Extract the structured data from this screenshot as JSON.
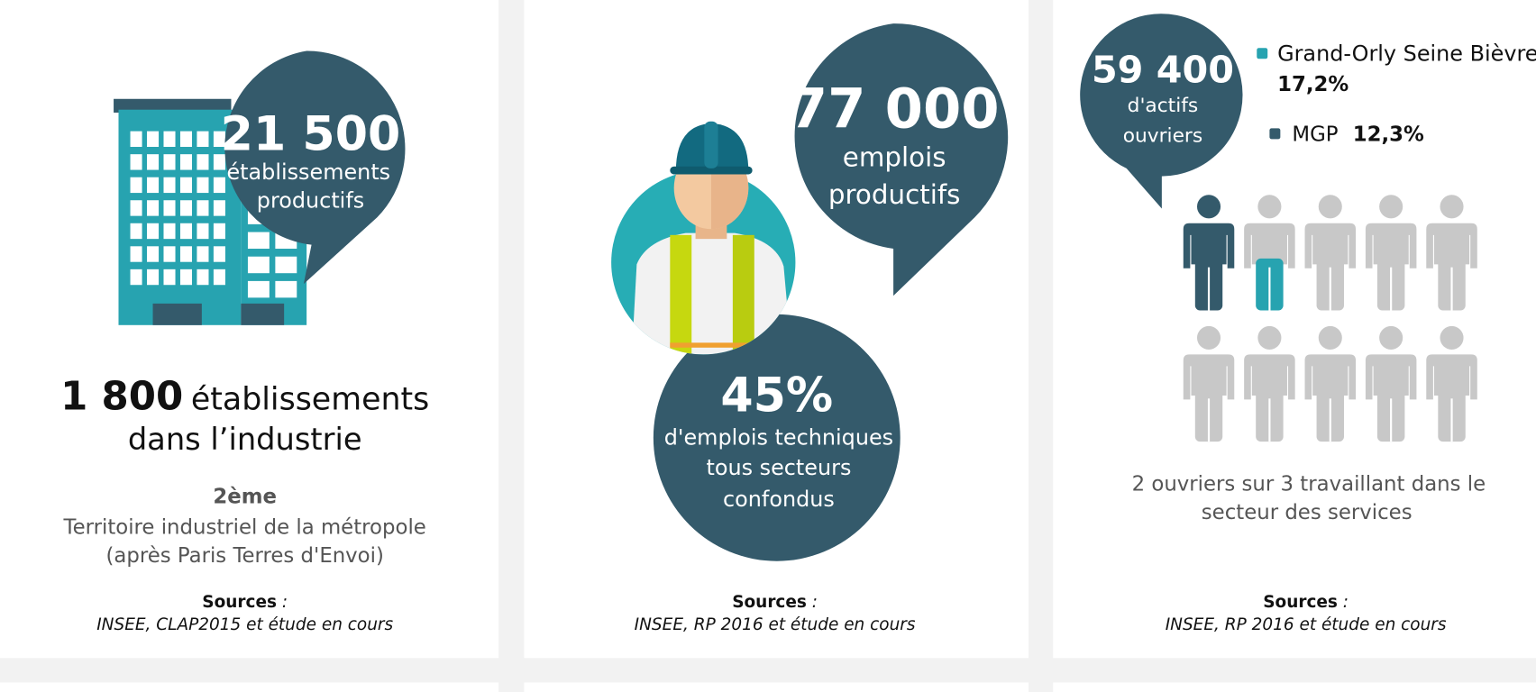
{
  "cards": [
    {
      "bubble": {
        "number": "21 500",
        "line1": "établissements",
        "line2": "productifs"
      },
      "headline": {
        "number": "1 800",
        "rest": "établissements",
        "line2": "dans l’industrie"
      },
      "rank": "2ème",
      "rank_line1": "Territoire industriel de la métropole",
      "rank_line2": "(après Paris Terres d'Envoi)",
      "sources_label": "Sources",
      "sources_sep": " :",
      "sources": "INSEE, CLAP2015 et étude en cours"
    },
    {
      "bubble": {
        "number": "77 000",
        "line1": "emplois",
        "line2": "productifs"
      },
      "bubble2": {
        "number": "45%",
        "line1": "d'emplois techniques",
        "line2": "tous secteurs",
        "line3": "confondus"
      },
      "sources_label": "Sources",
      "sources_sep": " :",
      "sources": "INSEE, RP 2016 et étude en cours"
    },
    {
      "bubble": {
        "number": "59 400",
        "line1": "d'actifs",
        "line2": "ouvriers"
      },
      "legend": [
        {
          "name": "Grand-Orly Seine Bièvre",
          "value": "17,2%"
        },
        {
          "name": "MGP",
          "value": "12,3%"
        }
      ],
      "caption_line1": "2 ouvriers sur 3 travaillant dans le",
      "caption_line2": "secteur des services",
      "sources_label": "Sources",
      "sources_sep": " :",
      "sources": "INSEE, RP 2016 et étude en cours"
    }
  ]
}
